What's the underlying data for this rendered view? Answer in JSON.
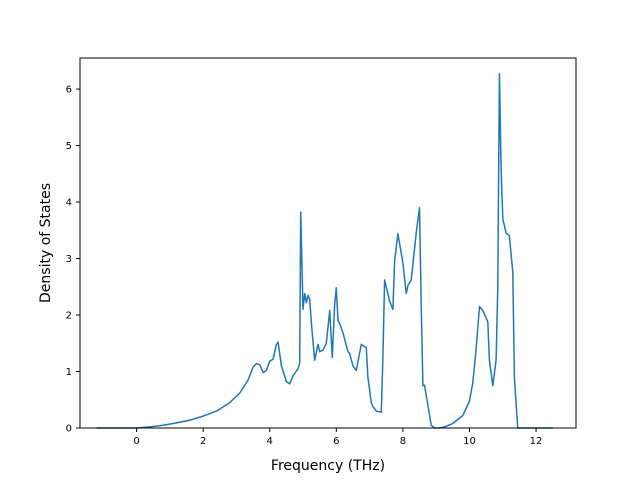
{
  "chart_data": {
    "type": "line",
    "title": "",
    "xlabel": "Frequency (THz)",
    "ylabel": "Density of States",
    "xlim": [
      -1.7,
      13.2
    ],
    "ylim": [
      0,
      6.55
    ],
    "x_ticks": [
      0,
      2,
      4,
      6,
      8,
      10,
      12
    ],
    "x_tick_labels": [
      "0",
      "2",
      "4",
      "6",
      "8",
      "10",
      "12"
    ],
    "y_ticks": [
      0,
      1,
      2,
      3,
      4,
      5,
      6
    ],
    "y_tick_labels": [
      "0",
      "1",
      "2",
      "3",
      "4",
      "5",
      "6"
    ],
    "grid": false,
    "legend": "none",
    "series": [
      {
        "color": "#1f77b4",
        "x": [
          -1.2,
          -0.6,
          0.0,
          0.4,
          0.8,
          1.2,
          1.6,
          2.0,
          2.4,
          2.8,
          3.1,
          3.35,
          3.5,
          3.6,
          3.7,
          3.8,
          3.9,
          4.0,
          4.1,
          4.2,
          4.25,
          4.35,
          4.5,
          4.6,
          4.7,
          4.85,
          4.9,
          4.93,
          5.0,
          5.05,
          5.1,
          5.15,
          5.2,
          5.25,
          5.35,
          5.45,
          5.5,
          5.6,
          5.7,
          5.8,
          5.88,
          5.95,
          6.0,
          6.05,
          6.1,
          6.2,
          6.35,
          6.4,
          6.5,
          6.6,
          6.75,
          6.9,
          6.95,
          7.05,
          7.1,
          7.2,
          7.35,
          7.4,
          7.45,
          7.5,
          7.6,
          7.7,
          7.75,
          7.85,
          8.0,
          8.1,
          8.15,
          8.25,
          8.4,
          8.5,
          8.55,
          8.6,
          8.65,
          8.75,
          8.85,
          8.95,
          9.1,
          9.25,
          9.5,
          9.8,
          10.0,
          10.1,
          10.2,
          10.3,
          10.4,
          10.55,
          10.6,
          10.7,
          10.8,
          10.85,
          10.9,
          10.95,
          11.0,
          11.1,
          11.2,
          11.3,
          11.35,
          11.45,
          11.6,
          12.0,
          12.5
        ],
        "y": [
          0.0,
          0.0,
          0.0,
          0.02,
          0.05,
          0.09,
          0.14,
          0.21,
          0.3,
          0.45,
          0.62,
          0.85,
          1.08,
          1.14,
          1.12,
          0.98,
          1.02,
          1.18,
          1.22,
          1.48,
          1.52,
          1.1,
          0.82,
          0.78,
          0.92,
          1.05,
          1.15,
          3.82,
          2.1,
          2.38,
          2.22,
          2.35,
          2.28,
          1.85,
          1.2,
          1.48,
          1.35,
          1.38,
          1.5,
          2.08,
          1.25,
          2.2,
          2.48,
          1.9,
          1.85,
          1.68,
          1.35,
          1.32,
          1.1,
          1.02,
          1.48,
          1.42,
          0.9,
          0.45,
          0.38,
          0.3,
          0.28,
          1.25,
          2.62,
          2.5,
          2.25,
          2.1,
          2.95,
          3.44,
          2.92,
          2.38,
          2.52,
          2.62,
          3.45,
          3.9,
          2.2,
          0.75,
          0.76,
          0.4,
          0.05,
          0.0,
          0.0,
          0.02,
          0.08,
          0.22,
          0.48,
          0.8,
          1.4,
          2.15,
          2.08,
          1.88,
          1.2,
          0.75,
          1.2,
          2.5,
          6.27,
          4.6,
          3.7,
          3.45,
          3.4,
          2.75,
          0.9,
          0.0,
          0.0,
          0.0,
          0.0
        ]
      }
    ]
  }
}
